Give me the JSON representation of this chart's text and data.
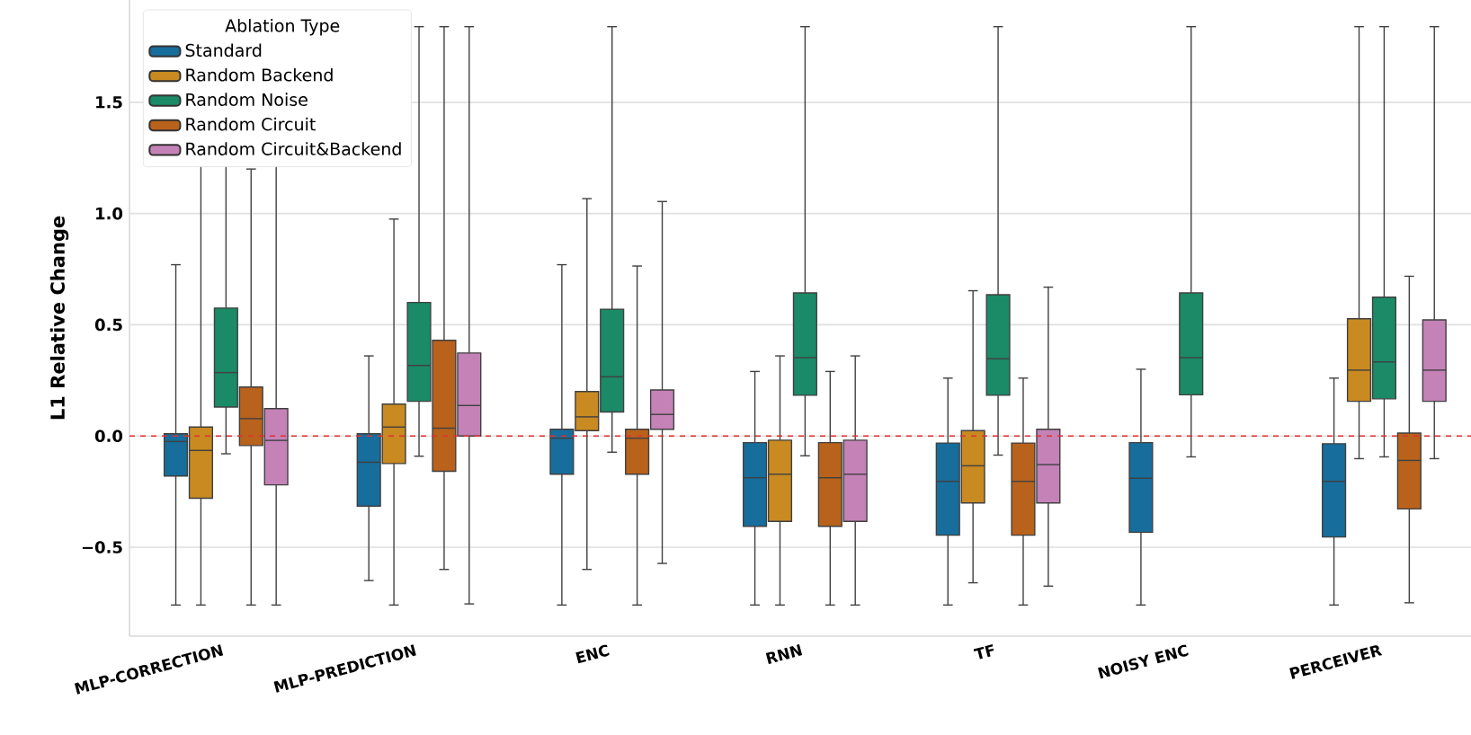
{
  "chart_data": {
    "type": "box",
    "ylabel": "L1 Relative Change",
    "legend_title": "Ablation Type",
    "legend": "top left",
    "grid": "y",
    "categories": [
      "MLP-CORRECTION",
      "MLP-PREDICTION",
      "ENC",
      "RNN",
      "TF",
      "NOISY ENC",
      "PERCEIVER"
    ],
    "ylim": [
      -0.9,
      1.96
    ],
    "yticks": [
      {
        "value": -0.5,
        "label": "−0.5"
      },
      {
        "value": 0,
        "label": "0.0"
      },
      {
        "value": 0.5,
        "label": "0.5"
      },
      {
        "value": 1,
        "label": "1.0"
      },
      {
        "value": 1.5,
        "label": "1.5"
      }
    ],
    "ref_lines": [
      {
        "axis": "y",
        "value": 0,
        "color": "#e03030",
        "line_style": "dashed"
      }
    ],
    "series": [
      {
        "name": "Standard",
        "color": "#176d9c",
        "boxes": [
          {
            "low": -0.76,
            "q1": -0.18,
            "median": -0.025,
            "q3": 0.01,
            "high": 0.77
          },
          {
            "low": -0.65,
            "q1": -0.315,
            "median": -0.118,
            "q3": 0.01,
            "high": 0.36
          },
          {
            "low": -0.76,
            "q1": -0.172,
            "median": -0.01,
            "q3": 0.03,
            "high": 0.77
          },
          {
            "low": -0.76,
            "q1": -0.406,
            "median": -0.188,
            "q3": -0.03,
            "high": 0.29
          },
          {
            "low": -0.76,
            "q1": -0.446,
            "median": -0.204,
            "q3": -0.032,
            "high": 0.26
          },
          {
            "low": -0.76,
            "q1": -0.433,
            "median": -0.19,
            "q3": -0.03,
            "high": 0.3
          },
          {
            "low": -0.76,
            "q1": -0.454,
            "median": -0.204,
            "q3": -0.035,
            "high": 0.26
          }
        ]
      },
      {
        "name": "Random Backend",
        "color": "#c88a21",
        "boxes": [
          {
            "low": -0.76,
            "q1": -0.28,
            "median": -0.065,
            "q3": 0.04,
            "high": 1.3
          },
          {
            "low": -0.76,
            "q1": -0.124,
            "median": 0.04,
            "q3": 0.143,
            "high": 0.975
          },
          {
            "low": -0.6,
            "q1": 0.024,
            "median": 0.086,
            "q3": 0.2,
            "high": 1.067
          },
          {
            "low": -0.76,
            "q1": -0.384,
            "median": -0.172,
            "q3": -0.019,
            "high": 0.36
          },
          {
            "low": -0.66,
            "q1": -0.301,
            "median": -0.134,
            "q3": 0.024,
            "high": 0.653
          },
          null,
          {
            "low": -0.102,
            "q1": 0.156,
            "median": 0.296,
            "q3": 0.527,
            "high": 1.84
          }
        ]
      },
      {
        "name": "Random Noise",
        "color": "#1a8a67",
        "boxes": [
          {
            "low": -0.08,
            "q1": 0.13,
            "median": 0.285,
            "q3": 0.575,
            "high": 1.84
          },
          {
            "low": -0.091,
            "q1": 0.156,
            "median": 0.317,
            "q3": 0.6,
            "high": 1.84
          },
          {
            "low": -0.073,
            "q1": 0.108,
            "median": 0.266,
            "q3": 0.57,
            "high": 1.84
          },
          {
            "low": -0.089,
            "q1": 0.183,
            "median": 0.352,
            "q3": 0.643,
            "high": 1.84
          },
          {
            "low": -0.086,
            "q1": 0.183,
            "median": 0.347,
            "q3": 0.635,
            "high": 1.84
          },
          {
            "low": -0.094,
            "q1": 0.185,
            "median": 0.352,
            "q3": 0.643,
            "high": 1.84
          },
          {
            "low": -0.094,
            "q1": 0.167,
            "median": 0.333,
            "q3": 0.624,
            "high": 1.84
          }
        ]
      },
      {
        "name": "Random Circuit",
        "color": "#b8621c",
        "boxes": [
          {
            "low": -0.76,
            "q1": -0.043,
            "median": 0.078,
            "q3": 0.22,
            "high": 1.2
          },
          {
            "low": -0.6,
            "q1": -0.159,
            "median": 0.035,
            "q3": 0.43,
            "high": 1.84
          },
          {
            "low": -0.76,
            "q1": -0.172,
            "median": -0.01,
            "q3": 0.03,
            "high": 0.764
          },
          {
            "low": -0.76,
            "q1": -0.406,
            "median": -0.188,
            "q3": -0.03,
            "high": 0.29
          },
          {
            "low": -0.76,
            "q1": -0.446,
            "median": -0.204,
            "q3": -0.032,
            "high": 0.26
          },
          null,
          {
            "low": -0.75,
            "q1": -0.328,
            "median": -0.11,
            "q3": 0.013,
            "high": 0.718
          }
        ]
      },
      {
        "name": "Random Circuit&Backend",
        "color": "#c482b7",
        "boxes": [
          {
            "low": -0.76,
            "q1": -0.22,
            "median": -0.02,
            "q3": 0.123,
            "high": 1.53
          },
          {
            "low": -0.755,
            "q1": 0.0,
            "median": 0.137,
            "q3": 0.373,
            "high": 1.84
          },
          {
            "low": -0.573,
            "q1": 0.03,
            "median": 0.097,
            "q3": 0.207,
            "high": 1.054
          },
          {
            "low": -0.76,
            "q1": -0.384,
            "median": -0.172,
            "q3": -0.019,
            "high": 0.36
          },
          {
            "low": -0.675,
            "q1": -0.301,
            "median": -0.129,
            "q3": 0.03,
            "high": 0.669
          },
          null,
          {
            "low": -0.102,
            "q1": 0.156,
            "median": 0.296,
            "q3": 0.522,
            "high": 1.84
          }
        ]
      }
    ]
  }
}
